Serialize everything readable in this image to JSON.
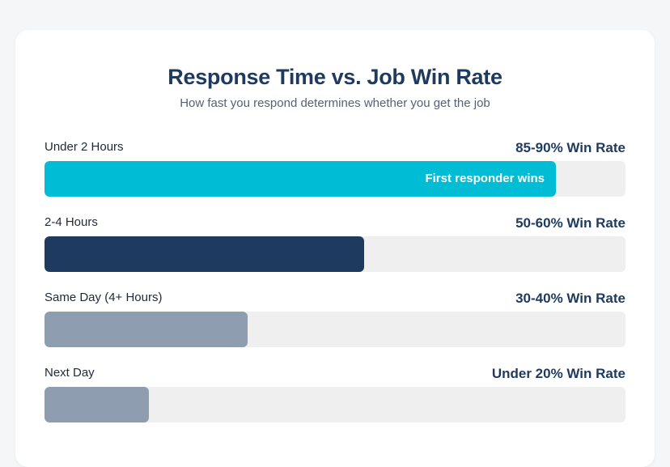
{
  "title": "Response Time vs. Job Win Rate",
  "subtitle": "How fast you respond determines whether you get the job",
  "chart_data": {
    "type": "bar",
    "orientation": "horizontal",
    "title": "Response Time vs. Job Win Rate",
    "subtitle": "How fast you respond determines whether you get the job",
    "categories": [
      "Under 2 Hours",
      "2-4 Hours",
      "Same Day (4+ Hours)",
      "Next Day"
    ],
    "values": [
      88,
      55,
      35,
      18
    ],
    "xlim": [
      0,
      100
    ],
    "rate_labels": [
      "85-90% Win Rate",
      "50-60% Win Rate",
      "30-40% Win Rate",
      "Under 20% Win Rate"
    ],
    "annotations": [
      "First responder wins",
      "",
      "",
      ""
    ],
    "colors": [
      "#00bcd4",
      "#1e3a5f",
      "#8e9daf",
      "#8e9daf"
    ],
    "track_color": "#efefef",
    "grid": false,
    "legend": "none"
  }
}
